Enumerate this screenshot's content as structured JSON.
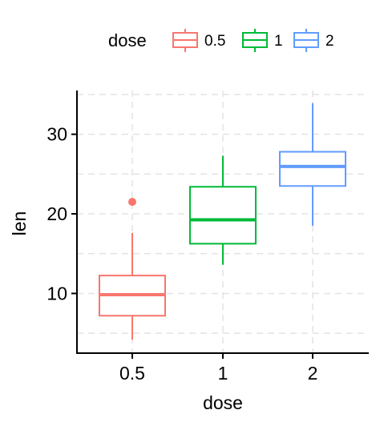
{
  "chart_data": {
    "type": "box",
    "xlabel": "dose",
    "ylabel": "len",
    "ylim": [
      2.5,
      35.5
    ],
    "yticks": [
      10,
      20,
      30
    ],
    "grid": "dashed major and minor",
    "legend": {
      "title": "dose",
      "position": "top"
    },
    "categories": [
      "0.5",
      "1",
      "2"
    ],
    "series": [
      {
        "name": "0.5",
        "color": "#F8766D",
        "min": 4.2,
        "q1": 7.2,
        "median": 9.85,
        "q3": 12.25,
        "max": 17.6,
        "outliers": [
          21.5
        ]
      },
      {
        "name": "1",
        "color": "#00BA38",
        "min": 13.6,
        "q1": 16.25,
        "median": 19.25,
        "q3": 23.4,
        "max": 27.3,
        "outliers": []
      },
      {
        "name": "2",
        "color": "#619CFF",
        "min": 18.5,
        "q1": 23.5,
        "median": 25.95,
        "q3": 27.8,
        "max": 33.9,
        "outliers": []
      }
    ]
  }
}
